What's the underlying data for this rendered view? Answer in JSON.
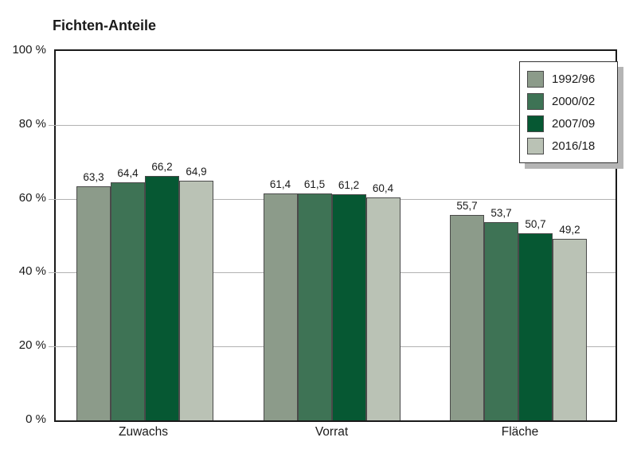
{
  "title": "Fichten-Anteile",
  "chart_data": {
    "type": "bar",
    "title": "Fichten-Anteile",
    "categories": [
      "Zuwachs",
      "Vorrat",
      "Fläche"
    ],
    "series": [
      {
        "name": "1992/96",
        "color": "#8C9B8A",
        "values": [
          63.3,
          61.4,
          55.7
        ],
        "value_labels": [
          "63,3",
          "61,4",
          "55,7"
        ]
      },
      {
        "name": "2000/02",
        "color": "#3E7355",
        "values": [
          64.4,
          61.5,
          53.7
        ],
        "value_labels": [
          "64,4",
          "61,5",
          "53,7"
        ]
      },
      {
        "name": "2007/09",
        "color": "#065833",
        "values": [
          66.2,
          61.2,
          50.7
        ],
        "value_labels": [
          "66,2",
          "61,2",
          "50,7"
        ]
      },
      {
        "name": "2016/18",
        "color": "#BAC2B5",
        "values": [
          64.9,
          60.4,
          49.2
        ],
        "value_labels": [
          "64,9",
          "60,4",
          "49,2"
        ]
      }
    ],
    "ylim": [
      0,
      100
    ],
    "yticks": [
      {
        "value": 0,
        "label": "0 %"
      },
      {
        "value": 20,
        "label": "20 %"
      },
      {
        "value": 40,
        "label": "40 %"
      },
      {
        "value": 60,
        "label": "60 %"
      },
      {
        "value": 80,
        "label": "80 %"
      },
      {
        "value": 100,
        "label": "100 %"
      }
    ],
    "gridline_values": [
      20,
      40,
      60,
      80
    ],
    "grid": "horizontal",
    "legend_position": "top-right",
    "colors": {
      "axis": "#1a1a1a",
      "gridline": "#b2b2b2",
      "bar_border": "#4a4a4a",
      "legend_shadow": "#b5b5b5"
    }
  }
}
